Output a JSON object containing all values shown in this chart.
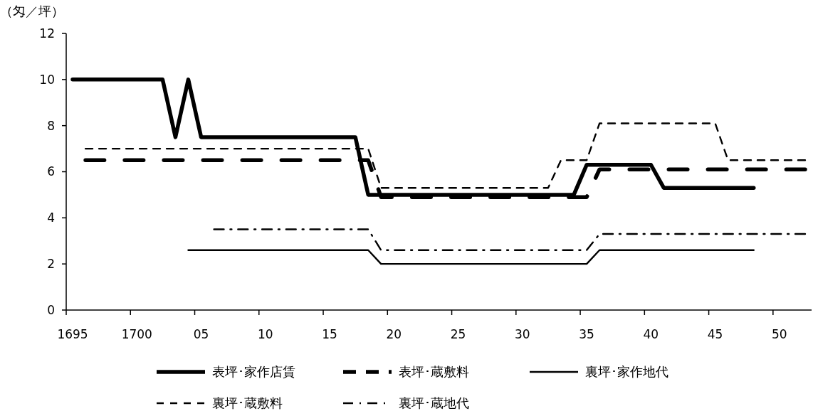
{
  "chart_data": {
    "type": "line",
    "ylabel": "（匁／坪）",
    "categories": [
      "1695",
      null,
      null,
      null,
      null,
      "1700",
      null,
      null,
      null,
      null,
      "05",
      null,
      null,
      null,
      null,
      "10",
      null,
      null,
      null,
      null,
      "15",
      null,
      null,
      null,
      null,
      "20",
      null,
      null,
      null,
      null,
      "25",
      null,
      null,
      null,
      null,
      "30",
      null,
      null,
      null,
      null,
      "35",
      null,
      null,
      null,
      null,
      "40",
      null,
      null,
      null,
      null,
      "45",
      null,
      null,
      null,
      null,
      "50",
      null,
      null
    ],
    "ylim": [
      0,
      12
    ],
    "yticks": [
      0,
      2,
      4,
      6,
      8,
      10,
      12
    ],
    "grid": false,
    "legend": "bottom",
    "series": [
      {
        "name": "表坪･家作店賃",
        "color": "#000000",
        "line_style": "solid",
        "values": [
          10,
          10,
          10,
          10,
          10,
          10,
          10,
          10,
          7.5,
          10,
          7.5,
          7.5,
          7.5,
          7.5,
          7.5,
          7.5,
          7.5,
          7.5,
          7.5,
          7.5,
          7.5,
          7.5,
          7.5,
          5,
          5,
          5,
          5,
          5,
          5,
          5,
          5,
          5,
          5,
          5,
          5,
          5,
          5,
          5,
          5,
          5,
          6.3,
          6.3,
          6.3,
          6.3,
          6.3,
          6.3,
          5.3,
          5.3,
          5.3,
          5.3,
          5.3,
          5.3,
          5.3,
          5.3,
          null,
          null,
          null,
          null
        ]
      },
      {
        "name": "表坪･蔵敷料",
        "color": "#000000",
        "line_style": "dashed",
        "values": [
          null,
          6.5,
          6.5,
          6.5,
          6.5,
          6.5,
          6.5,
          6.5,
          6.5,
          6.5,
          6.5,
          6.5,
          6.5,
          6.5,
          6.5,
          6.5,
          6.5,
          6.5,
          6.5,
          6.5,
          6.5,
          6.5,
          6.5,
          6.5,
          4.9,
          4.9,
          4.9,
          4.9,
          4.9,
          4.9,
          4.9,
          4.9,
          4.9,
          4.9,
          4.9,
          4.9,
          4.9,
          4.9,
          4.9,
          4.9,
          4.9,
          6.1,
          6.1,
          6.1,
          6.1,
          6.1,
          6.1,
          6.1,
          6.1,
          6.1,
          6.1,
          6.1,
          6.1,
          6.1,
          6.1,
          6.1,
          6.1,
          6.1
        ]
      },
      {
        "name": "裏坪･家作地代",
        "color": "#000000",
        "line_style": "solid",
        "values": [
          null,
          null,
          null,
          null,
          null,
          null,
          null,
          null,
          null,
          2.6,
          2.6,
          2.6,
          2.6,
          2.6,
          2.6,
          2.6,
          2.6,
          2.6,
          2.6,
          2.6,
          2.6,
          2.6,
          2.6,
          2.6,
          2,
          2,
          2,
          2,
          2,
          2,
          2,
          2,
          2,
          2,
          2,
          2,
          2,
          2,
          2,
          2,
          2,
          2.6,
          2.6,
          2.6,
          2.6,
          2.6,
          2.6,
          2.6,
          2.6,
          2.6,
          2.6,
          2.6,
          2.6,
          2.6,
          null,
          null,
          null,
          null
        ]
      },
      {
        "name": "裏坪･蔵敷料",
        "color": "#000000",
        "line_style": "dashed",
        "values": [
          null,
          7,
          7,
          7,
          7,
          7,
          7,
          7,
          7,
          7,
          7,
          7,
          7,
          7,
          7,
          7,
          7,
          7,
          7,
          7,
          7,
          7,
          7,
          7,
          5.3,
          5.3,
          5.3,
          5.3,
          5.3,
          5.3,
          5.3,
          5.3,
          5.3,
          5.3,
          5.3,
          5.3,
          5.3,
          5.3,
          6.5,
          6.5,
          6.5,
          8.1,
          8.1,
          8.1,
          8.1,
          8.1,
          8.1,
          8.1,
          8.1,
          8.1,
          8.1,
          6.5,
          6.5,
          6.5,
          6.5,
          6.5,
          6.5,
          6.5
        ]
      },
      {
        "name": "裏坪･蔵地代",
        "color": "#000000",
        "line_style": "dashdot",
        "values": [
          null,
          null,
          null,
          null,
          null,
          null,
          null,
          null,
          null,
          null,
          null,
          3.5,
          3.5,
          3.5,
          3.5,
          3.5,
          3.5,
          3.5,
          3.5,
          3.5,
          3.5,
          3.5,
          3.5,
          3.5,
          2.6,
          2.6,
          2.6,
          2.6,
          2.6,
          2.6,
          2.6,
          2.6,
          2.6,
          2.6,
          2.6,
          2.6,
          2.6,
          2.6,
          2.6,
          2.6,
          2.6,
          3.3,
          3.3,
          3.3,
          3.3,
          3.3,
          3.3,
          3.3,
          3.3,
          3.3,
          3.3,
          3.3,
          3.3,
          3.3,
          3.3,
          3.3,
          3.3,
          3.3
        ]
      }
    ]
  }
}
